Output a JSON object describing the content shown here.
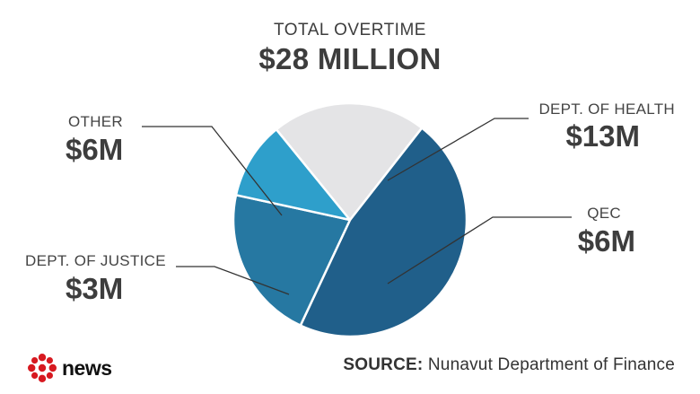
{
  "header": {
    "subtitle": "TOTAL OVERTIME",
    "title": "$28 MILLION"
  },
  "chart_data": {
    "type": "pie",
    "title": "TOTAL OVERTIME",
    "total_label": "$28 MILLION",
    "slices": [
      {
        "name": "DEPT. OF HEALTH",
        "label": "$13M",
        "value": 13,
        "color": "#205f8a"
      },
      {
        "name": "QEC",
        "label": "$6M",
        "value": 6,
        "color": "#2678a2"
      },
      {
        "name": "DEPT. OF JUSTICE",
        "label": "$3M",
        "value": 3,
        "color": "#2e9fcb"
      },
      {
        "name": "OTHER",
        "label": "$6M",
        "value": 6,
        "color": "#e4e4e6"
      }
    ]
  },
  "footer": {
    "logo_text": "news",
    "source_label": "SOURCE:",
    "source_text": "Nunavut Department of Finance"
  }
}
